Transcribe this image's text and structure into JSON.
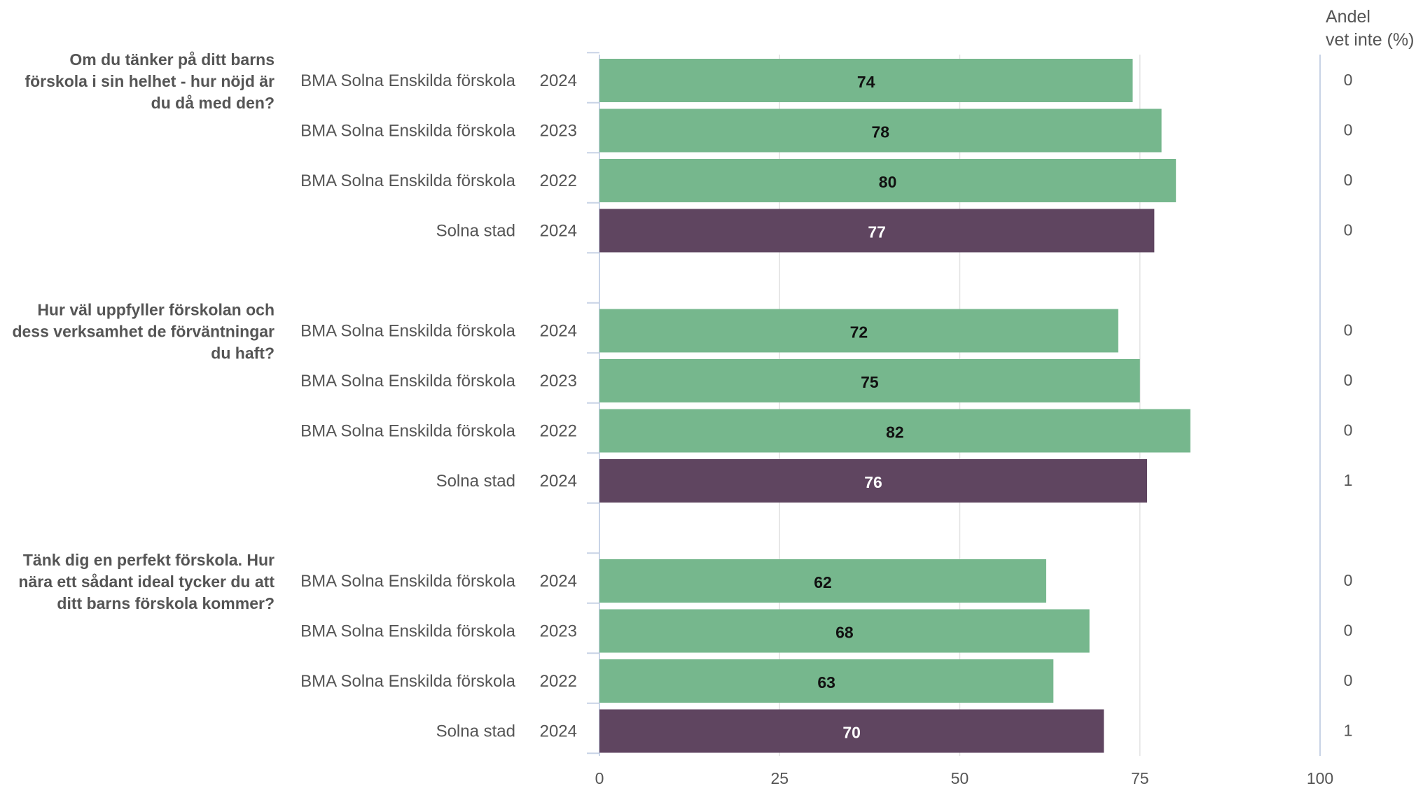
{
  "chart_data": {
    "type": "bar",
    "orientation": "horizontal",
    "xlim": [
      0,
      100
    ],
    "x_ticks": [
      "0",
      "25",
      "50",
      "75",
      "100"
    ],
    "grid": true,
    "colors": {
      "school": "#76b78d",
      "city": "#5f4560"
    },
    "side_column_header": [
      "Andel",
      "vet inte (%)"
    ],
    "groups": [
      {
        "question": [
          "Om du tänker på ditt barns",
          "förskola i sin helhet - hur nöjd är",
          "du då med den?"
        ],
        "rows": [
          {
            "unit": "BMA Solna Enskilda förskola",
            "year": "2024",
            "value": 74,
            "value_label": "74",
            "vet_inte": "0",
            "type": "school"
          },
          {
            "unit": "BMA Solna Enskilda förskola",
            "year": "2023",
            "value": 78,
            "value_label": "78",
            "vet_inte": "0",
            "type": "school"
          },
          {
            "unit": "BMA Solna Enskilda förskola",
            "year": "2022",
            "value": 80,
            "value_label": "80",
            "vet_inte": "0",
            "type": "school"
          },
          {
            "unit": "Solna stad",
            "year": "2024",
            "value": 77,
            "value_label": "77",
            "vet_inte": "0",
            "type": "city"
          }
        ]
      },
      {
        "question": [
          "Hur väl uppfyller förskolan och",
          "dess verksamhet de förväntningar",
          "du haft?"
        ],
        "rows": [
          {
            "unit": "BMA Solna Enskilda förskola",
            "year": "2024",
            "value": 72,
            "value_label": "72",
            "vet_inte": "0",
            "type": "school"
          },
          {
            "unit": "BMA Solna Enskilda förskola",
            "year": "2023",
            "value": 75,
            "value_label": "75",
            "vet_inte": "0",
            "type": "school"
          },
          {
            "unit": "BMA Solna Enskilda förskola",
            "year": "2022",
            "value": 82,
            "value_label": "82",
            "vet_inte": "0",
            "type": "school"
          },
          {
            "unit": "Solna stad",
            "year": "2024",
            "value": 76,
            "value_label": "76",
            "vet_inte": "1",
            "type": "city"
          }
        ]
      },
      {
        "question": [
          "Tänk dig en perfekt förskola. Hur",
          "nära ett sådant ideal tycker du att",
          "ditt barns förskola kommer?"
        ],
        "rows": [
          {
            "unit": "BMA Solna Enskilda förskola",
            "year": "2024",
            "value": 62,
            "value_label": "62",
            "vet_inte": "0",
            "type": "school"
          },
          {
            "unit": "BMA Solna Enskilda förskola",
            "year": "2023",
            "value": 68,
            "value_label": "68",
            "vet_inte": "0",
            "type": "school"
          },
          {
            "unit": "BMA Solna Enskilda förskola",
            "year": "2022",
            "value": 63,
            "value_label": "63",
            "vet_inte": "0",
            "type": "school"
          },
          {
            "unit": "Solna stad",
            "year": "2024",
            "value": 70,
            "value_label": "70",
            "vet_inte": "1",
            "type": "city"
          }
        ]
      }
    ]
  }
}
